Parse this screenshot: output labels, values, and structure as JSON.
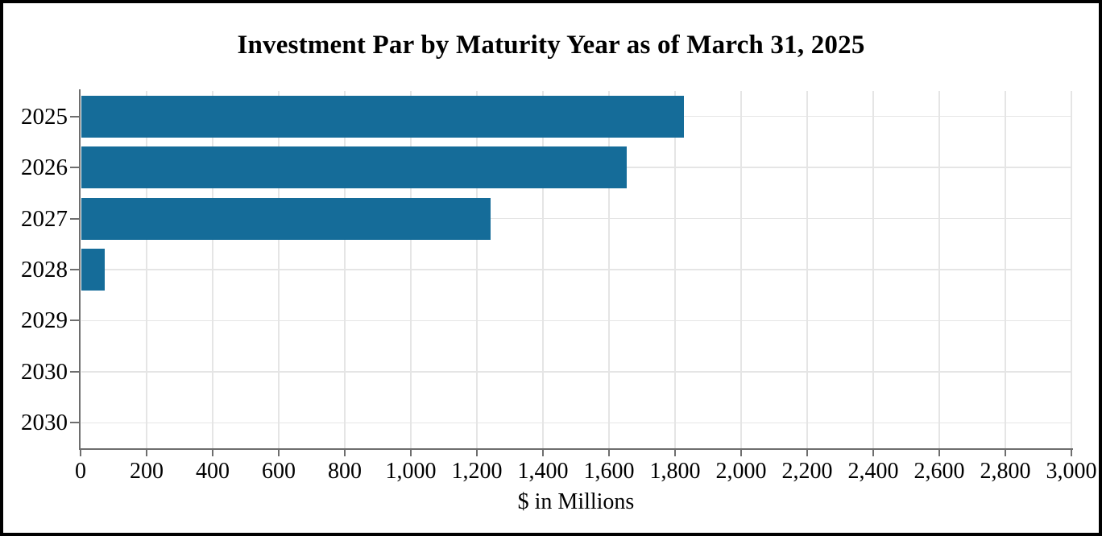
{
  "window": {
    "background": "#ffffff",
    "border_color": "#000000"
  },
  "chart_data": {
    "type": "bar",
    "orientation": "horizontal",
    "title": "Investment Par by Maturity Year as of March 31, 2025",
    "xlabel": "$ in Millions",
    "ylabel": "",
    "categories": [
      "2025",
      "2026",
      "2027",
      "2028",
      "2029",
      "2030",
      "2030"
    ],
    "values": [
      1825,
      1650,
      1240,
      70,
      0,
      0,
      0
    ],
    "xlim": [
      0,
      3000
    ],
    "xticks": [
      0,
      200,
      400,
      600,
      800,
      1000,
      1200,
      1400,
      1600,
      1800,
      2000,
      2200,
      2400,
      2600,
      2800,
      3000
    ],
    "xtick_labels": [
      "0",
      "200",
      "400",
      "600",
      "800",
      "1,000",
      "1,200",
      "1,400",
      "1,600",
      "1,800",
      "2,000",
      "2,200",
      "2,400",
      "2,600",
      "2,800",
      "3,000"
    ],
    "grid": true,
    "legend": "none",
    "colors": {
      "bar": "#156C99",
      "axis": "#6E6E6E",
      "grid": "#E5E5E5",
      "text": "#000000"
    }
  }
}
